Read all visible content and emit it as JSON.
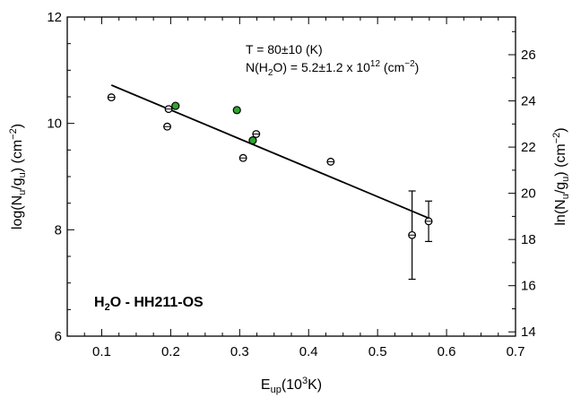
{
  "chart_data": {
    "type": "scatter",
    "xlabel": {
      "base": "E",
      "sub": "up",
      "rest": "(10",
      "sup": "3",
      "tail": "K)"
    },
    "ylabel_left": {
      "p1": "log(N",
      "s1": "u",
      "p2": "/g",
      "s2": "u",
      "p3": ") (cm",
      "sup": "−2",
      "p4": ")"
    },
    "ylabel_right": {
      "p1": "ln(N",
      "s1": "u",
      "p2": "/g",
      "s2": "u",
      "p3": ") (cm",
      "sup": "−2",
      "p4": ")"
    },
    "xlim": [
      0.05,
      0.7
    ],
    "ylim": [
      6,
      12
    ],
    "ylim_right": [
      13.815,
      27.631
    ],
    "x_ticks": [
      0.1,
      0.2,
      0.3,
      0.4,
      0.5,
      0.6,
      0.7
    ],
    "x_tick_labels": [
      "0.1",
      "0.2",
      "0.3",
      "0.4",
      "0.5",
      "0.6",
      "0.7"
    ],
    "y_ticks": [
      6,
      8,
      10,
      12
    ],
    "y_tick_labels": [
      "6",
      "8",
      "10",
      "12"
    ],
    "y_right_ticks": [
      14,
      16,
      18,
      20,
      22,
      24,
      26
    ],
    "y_right_tick_labels": [
      "14",
      "16",
      "18",
      "20",
      "22",
      "24",
      "26"
    ],
    "annotations": {
      "temperature": "T = 80±10 (K)",
      "column_density": {
        "pre": "N(H",
        "sub": "2",
        "mid": "O) = 5.2±1.2 x 10",
        "sup": "12",
        "post": " (cm",
        "sup2": "−2",
        "end": ")"
      }
    },
    "species_label": {
      "pre": "H",
      "sub": "2",
      "post": "O - HH211-OS"
    },
    "colors": {
      "open_points": "#ffffff",
      "green_points": "#2ea62e",
      "line": "#000000"
    },
    "series": [
      {
        "marker": "open",
        "points": [
          {
            "x": 0.114,
            "y": 10.49,
            "err": 0.04
          },
          {
            "x": 0.195,
            "y": 9.94,
            "err": 0.04
          },
          {
            "x": 0.197,
            "y": 10.27,
            "err": 0.04
          },
          {
            "x": 0.305,
            "y": 9.35,
            "err": 0.04
          },
          {
            "x": 0.324,
            "y": 9.8,
            "err": 0.04
          },
          {
            "x": 0.432,
            "y": 9.28,
            "err": 0.08
          },
          {
            "x": 0.55,
            "y": 7.9,
            "err": 0.83
          },
          {
            "x": 0.574,
            "y": 8.16,
            "err": 0.38
          }
        ]
      },
      {
        "marker": "green",
        "points": [
          {
            "x": 0.207,
            "y": 10.33
          },
          {
            "x": 0.296,
            "y": 10.25
          },
          {
            "x": 0.319,
            "y": 9.68
          }
        ]
      }
    ],
    "fit_line": {
      "x": [
        0.114,
        0.574
      ],
      "y": [
        10.72,
        8.22
      ]
    }
  }
}
